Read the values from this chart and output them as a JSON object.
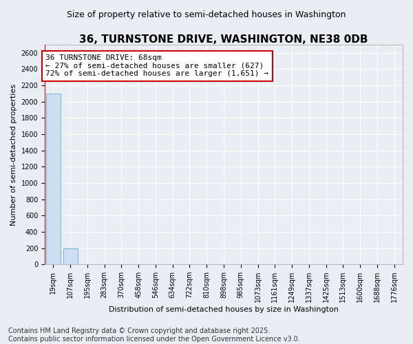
{
  "title": "36, TURNSTONE DRIVE, WASHINGTON, NE38 0DB",
  "subtitle": "Size of property relative to semi-detached houses in Washington",
  "xlabel": "Distribution of semi-detached houses by size in Washington",
  "ylabel": "Number of semi-detached properties",
  "bins": [
    "19sqm",
    "107sqm",
    "195sqm",
    "283sqm",
    "370sqm",
    "458sqm",
    "546sqm",
    "634sqm",
    "722sqm",
    "810sqm",
    "898sqm",
    "985sqm",
    "1073sqm",
    "1161sqm",
    "1249sqm",
    "1337sqm",
    "1425sqm",
    "1513sqm",
    "1600sqm",
    "1688sqm",
    "1776sqm"
  ],
  "values": [
    2100,
    200,
    0,
    0,
    0,
    0,
    0,
    0,
    0,
    0,
    0,
    0,
    0,
    0,
    0,
    0,
    0,
    0,
    0,
    0,
    0
  ],
  "bar_color": "#ccdff0",
  "bar_edge_color": "#7ab0d0",
  "property_sqm": 68,
  "property_name": "36 TURNSTONE DRIVE",
  "pct_smaller": 27,
  "n_smaller": 627,
  "pct_larger": 72,
  "n_larger": 1651,
  "annotation_box_color": "#cc0000",
  "red_line_x": -0.5,
  "ylim": [
    0,
    2700
  ],
  "yticks": [
    0,
    200,
    400,
    600,
    800,
    1000,
    1200,
    1400,
    1600,
    1800,
    2000,
    2200,
    2400,
    2600
  ],
  "footer1": "Contains HM Land Registry data © Crown copyright and database right 2025.",
  "footer2": "Contains public sector information licensed under the Open Government Licence v3.0.",
  "bg_color": "#e8eef4",
  "grid_color": "#ffffff",
  "title_fontsize": 11,
  "subtitle_fontsize": 9,
  "annotation_fontsize": 8,
  "tick_fontsize": 7,
  "label_fontsize": 8,
  "footer_fontsize": 7
}
